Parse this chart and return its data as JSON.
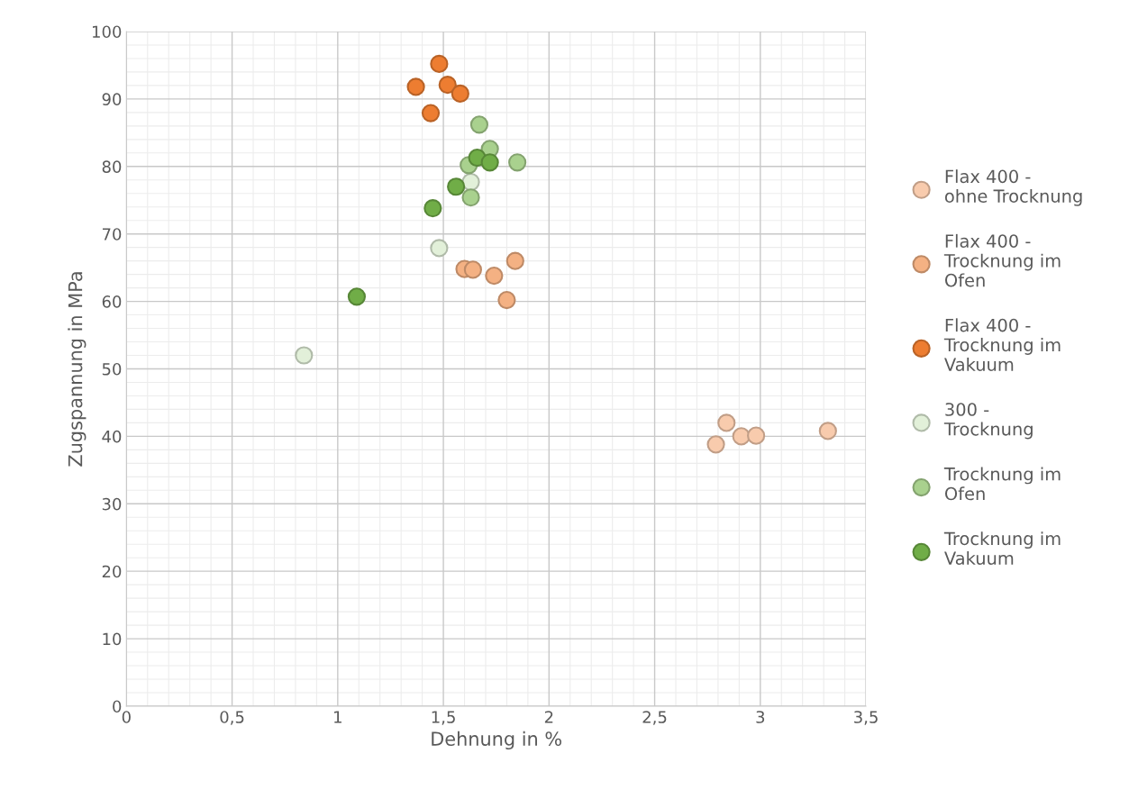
{
  "chart_data": {
    "type": "scatter",
    "xlabel": "Dehnung in %",
    "ylabel": "Zugspannung in MPa",
    "xlim": [
      0,
      3.5
    ],
    "ylim": [
      0,
      100
    ],
    "xticks": [
      0,
      {
        "value": 0.5,
        "label": "0,5"
      },
      1,
      {
        "value": 1.5,
        "label": "1,5"
      },
      2,
      {
        "value": 2.5,
        "label": "2,5"
      },
      3,
      {
        "value": 3.5,
        "label": "3,5"
      }
    ],
    "yticks": [
      0,
      10,
      20,
      30,
      40,
      50,
      60,
      70,
      80,
      90,
      100
    ],
    "grid": true,
    "legend": "right",
    "marker": "circle",
    "series": [
      {
        "name": "Flax 400 - ohne Trocknung",
        "color": "#f8cbad",
        "x": [
          2.79,
          2.84,
          2.91,
          2.98,
          3.32
        ],
        "values": [
          38.8,
          42.0,
          40.0,
          40.1,
          40.8
        ]
      },
      {
        "name": "Flax 400 - Trocknung im Ofen",
        "color": "#f4b183",
        "x": [
          1.6,
          1.64,
          1.74,
          1.84,
          1.8
        ],
        "values": [
          64.8,
          64.7,
          63.8,
          66.0,
          60.2
        ]
      },
      {
        "name": "Flax 400 - Trocknung im Vakuum",
        "color": "#ed7d31",
        "x": [
          1.37,
          1.48,
          1.52,
          1.58,
          1.44
        ],
        "values": [
          91.8,
          95.2,
          92.1,
          90.8,
          87.9
        ]
      },
      {
        "name": "300 - Trocknung",
        "color": "#e2f0d9",
        "x": [
          0.84,
          1.48,
          1.63
        ],
        "values": [
          52.0,
          67.9,
          77.7
        ]
      },
      {
        "name": "Trocknung im Ofen",
        "color": "#a9d18e",
        "x": [
          1.67,
          1.72,
          1.62,
          1.85,
          1.63
        ],
        "values": [
          86.2,
          82.6,
          80.2,
          80.6,
          75.4
        ]
      },
      {
        "name": "Trocknung im Vakuum",
        "color": "#70ad47",
        "x": [
          1.09,
          1.45,
          1.56,
          1.66,
          1.72
        ],
        "values": [
          60.7,
          73.8,
          77.0,
          81.3,
          80.6
        ]
      }
    ]
  }
}
